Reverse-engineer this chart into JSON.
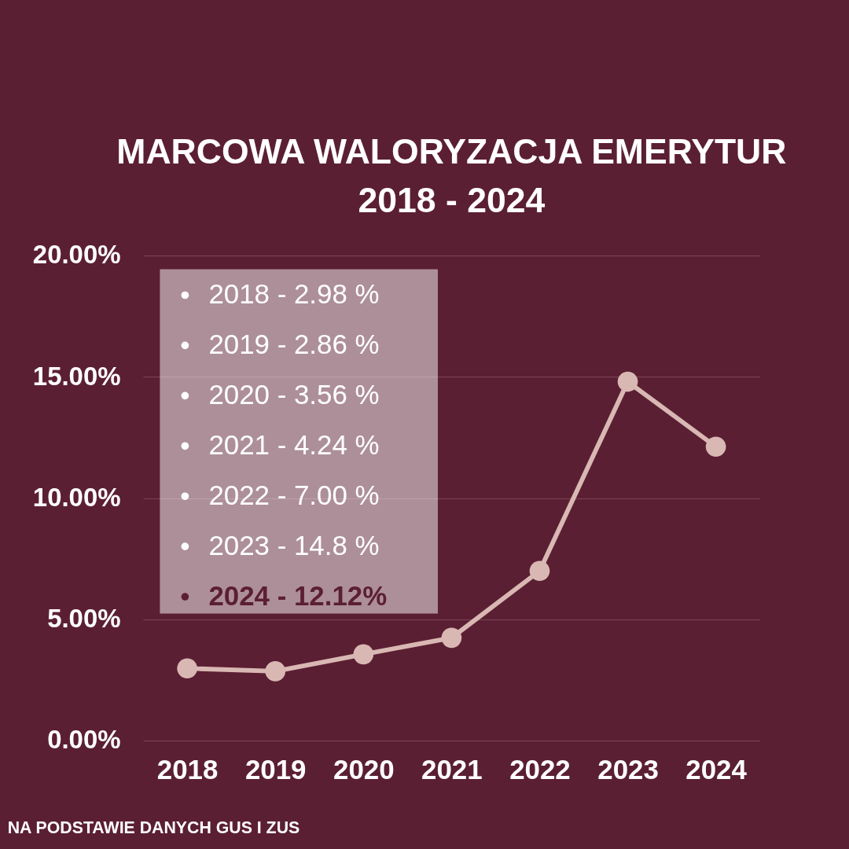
{
  "chart_data": {
    "type": "line",
    "title": "MARCOWA WALORYZACJA EMERYTUR\n2018 - 2024",
    "categories": [
      "2018",
      "2019",
      "2020",
      "2021",
      "2022",
      "2023",
      "2024"
    ],
    "series": [
      {
        "color": "#d9b8b4",
        "values": [
          2.98,
          2.86,
          3.56,
          4.24,
          7.0,
          14.8,
          12.12
        ]
      }
    ],
    "ylim": [
      0,
      20
    ],
    "yticks": [
      {
        "value": 0,
        "label": "0.00%"
      },
      {
        "value": 5,
        "label": "5.00%"
      },
      {
        "value": 10,
        "label": "10.00%"
      },
      {
        "value": 15,
        "label": "15.00%"
      },
      {
        "value": 20,
        "label": "20.00%"
      }
    ],
    "grid": "y",
    "marker": "circle",
    "line_style": "solid",
    "legend": false,
    "annotations": [
      "2018 - 2.98 %",
      "2019 - 2.86 %",
      "2020 - 3.56 %",
      "2021 - 4.24 %",
      "2022 - 7.00 %",
      "2023 - 14.8 %",
      "2024 - 12.12%",
      "NA PODSTAWIE DANYCH GUS I ZUS"
    ]
  }
}
